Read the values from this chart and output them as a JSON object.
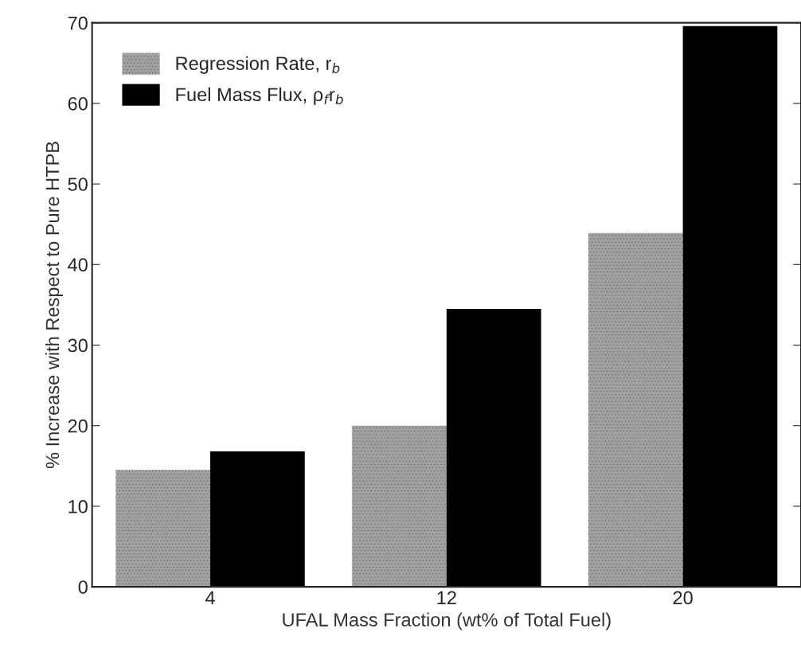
{
  "chart_data": {
    "type": "bar",
    "xlabel": "UFAL Mass Fraction (wt% of Total Fuel)",
    "ylabel": "% Increase with Respect to Pure HTPB",
    "categories": [
      "4",
      "12",
      "20"
    ],
    "series": [
      {
        "name": "Regression Rate, r$_{b}$",
        "color": "#a0a0a0",
        "values": [
          14.5,
          20,
          43.9
        ]
      },
      {
        "name": "Fuel Mass Flux, ρ$_{f}$r$_{b}$",
        "color": "#000000",
        "values": [
          16.8,
          34.5,
          69.6
        ]
      }
    ],
    "ylim": [
      0,
      70
    ],
    "yticks": [
      0,
      10,
      20,
      30,
      40,
      50,
      60,
      70
    ],
    "grid": false,
    "legend": "top left"
  }
}
